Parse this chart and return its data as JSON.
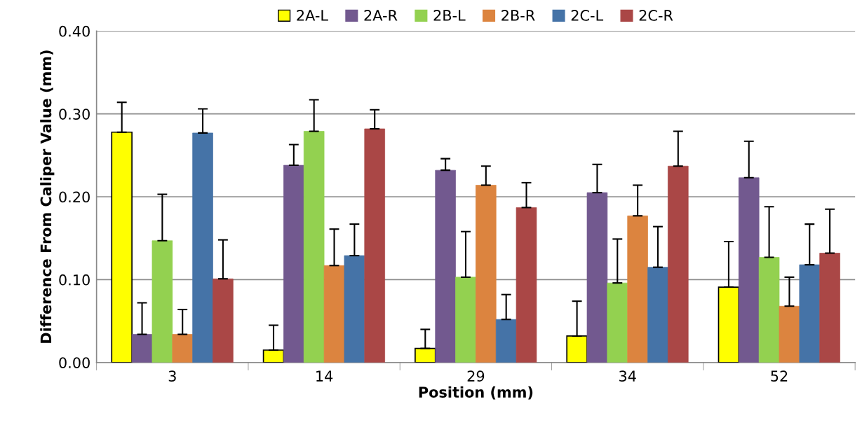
{
  "chart_data": {
    "type": "bar",
    "xlabel": "Position (mm)",
    "ylabel": "Difference From Caliper Value (mm)",
    "categories": [
      "3",
      "14",
      "29",
      "34",
      "52"
    ],
    "series": [
      {
        "name": "2A-L",
        "color": "#ffff00",
        "values": [
          0.278,
          0.015,
          0.017,
          0.032,
          0.091
        ],
        "errors": [
          [
            0.278,
            0.314
          ],
          [
            0.015,
            0.045
          ],
          [
            0.017,
            0.04
          ],
          [
            0.032,
            0.074
          ],
          [
            0.091,
            0.146
          ]
        ]
      },
      {
        "name": "2A-R",
        "color": "#72598f",
        "values": [
          0.034,
          0.238,
          0.232,
          0.205,
          0.223
        ],
        "errors": [
          [
            0.034,
            0.072
          ],
          [
            0.238,
            0.263
          ],
          [
            0.232,
            0.246
          ],
          [
            0.205,
            0.239
          ],
          [
            0.223,
            0.267
          ]
        ]
      },
      {
        "name": "2B-L",
        "color": "#93d150",
        "values": [
          0.147,
          0.279,
          0.103,
          0.096,
          0.127
        ],
        "errors": [
          [
            0.147,
            0.203
          ],
          [
            0.279,
            0.317
          ],
          [
            0.103,
            0.158
          ],
          [
            0.096,
            0.149
          ],
          [
            0.127,
            0.188
          ]
        ]
      },
      {
        "name": "2B-R",
        "color": "#dc843f",
        "values": [
          0.034,
          0.117,
          0.214,
          0.177,
          0.068
        ],
        "errors": [
          [
            0.034,
            0.064
          ],
          [
            0.117,
            0.161
          ],
          [
            0.214,
            0.237
          ],
          [
            0.177,
            0.214
          ],
          [
            0.068,
            0.103
          ]
        ]
      },
      {
        "name": "2C-L",
        "color": "#4573a7",
        "values": [
          0.277,
          0.129,
          0.052,
          0.115,
          0.118
        ],
        "errors": [
          [
            0.277,
            0.306
          ],
          [
            0.129,
            0.167
          ],
          [
            0.052,
            0.082
          ],
          [
            0.115,
            0.164
          ],
          [
            0.118,
            0.167
          ]
        ]
      },
      {
        "name": "2C-R",
        "color": "#aa4746",
        "values": [
          0.101,
          0.282,
          0.187,
          0.237,
          0.132
        ],
        "errors": [
          [
            0.101,
            0.148
          ],
          [
            0.282,
            0.305
          ],
          [
            0.187,
            0.217
          ],
          [
            0.237,
            0.279
          ],
          [
            0.132,
            0.185
          ]
        ]
      }
    ],
    "ylim": [
      0,
      0.4
    ],
    "yticks": [
      {
        "value": 0,
        "label": "0.00"
      },
      {
        "value": 0.1,
        "label": "0.10"
      },
      {
        "value": 0.2,
        "label": "0.20"
      },
      {
        "value": 0.3,
        "label": "0.30"
      },
      {
        "value": 0.4,
        "label": "0.40"
      }
    ],
    "grid": "y",
    "legend": "top"
  }
}
